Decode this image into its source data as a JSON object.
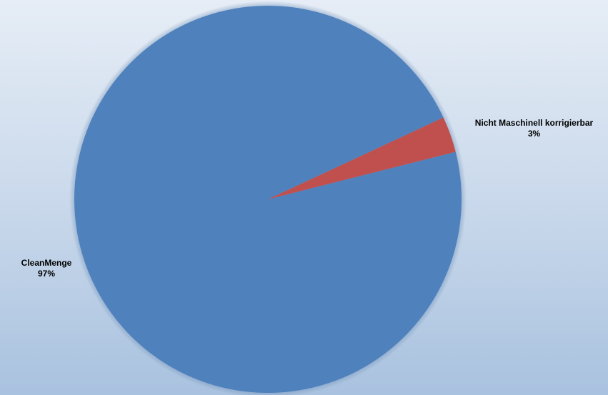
{
  "chart_data": {
    "type": "pie",
    "categories": [
      "CleanMenge",
      "Nicht Maschinell korrigierbar"
    ],
    "values": [
      97,
      3
    ],
    "value_unit": "%",
    "labels": [
      {
        "name": "CleanMenge",
        "percent": "97%"
      },
      {
        "name": "Nicht Maschinell korrigierbar",
        "percent": "3%"
      }
    ],
    "colors": [
      "#4f81bd",
      "#c0504d"
    ],
    "legend": "none",
    "data_labels": "outside, category name and percent"
  }
}
